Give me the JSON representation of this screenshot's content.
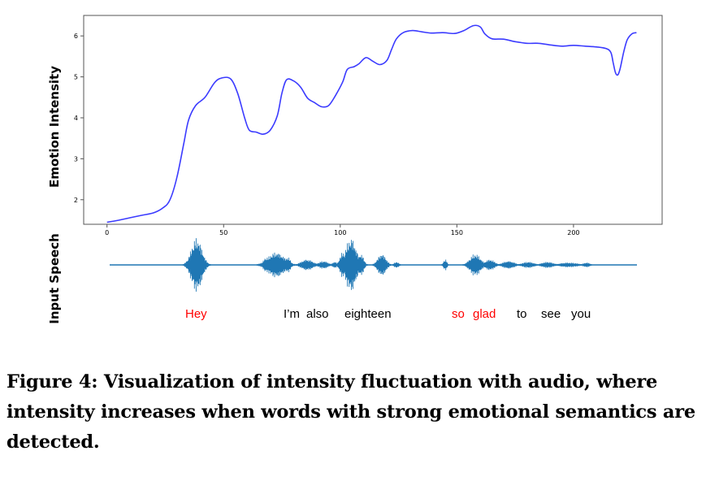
{
  "chart_data": {
    "type": "line",
    "ylabel": "Emotion Intensity",
    "xlim": [
      -10,
      238
    ],
    "ylim": [
      1.4,
      6.5
    ],
    "x_ticks": [
      0,
      50,
      100,
      150,
      200
    ],
    "y_ticks": [
      2,
      3,
      4,
      5,
      6
    ],
    "series": [
      {
        "color": "#3b3bff",
        "points": [
          [
            0,
            1.45
          ],
          [
            5,
            1.5
          ],
          [
            10,
            1.56
          ],
          [
            15,
            1.62
          ],
          [
            20,
            1.68
          ],
          [
            24,
            1.8
          ],
          [
            27,
            2.0
          ],
          [
            30,
            2.55
          ],
          [
            33,
            3.4
          ],
          [
            35,
            3.95
          ],
          [
            38,
            4.3
          ],
          [
            42,
            4.5
          ],
          [
            46,
            4.85
          ],
          [
            49,
            4.97
          ],
          [
            53,
            4.95
          ],
          [
            56,
            4.6
          ],
          [
            59,
            4.0
          ],
          [
            61,
            3.7
          ],
          [
            64,
            3.65
          ],
          [
            67,
            3.6
          ],
          [
            70,
            3.7
          ],
          [
            73,
            4.05
          ],
          [
            75,
            4.6
          ],
          [
            77,
            4.93
          ],
          [
            80,
            4.9
          ],
          [
            83,
            4.75
          ],
          [
            86,
            4.48
          ],
          [
            89,
            4.37
          ],
          [
            92,
            4.27
          ],
          [
            95,
            4.3
          ],
          [
            98,
            4.55
          ],
          [
            101,
            4.87
          ],
          [
            103,
            5.18
          ],
          [
            106,
            5.25
          ],
          [
            108,
            5.32
          ],
          [
            111,
            5.47
          ],
          [
            114,
            5.38
          ],
          [
            117,
            5.3
          ],
          [
            120,
            5.4
          ],
          [
            122,
            5.67
          ],
          [
            124,
            5.92
          ],
          [
            127,
            6.08
          ],
          [
            131,
            6.13
          ],
          [
            135,
            6.1
          ],
          [
            139,
            6.07
          ],
          [
            144,
            6.08
          ],
          [
            149,
            6.06
          ],
          [
            153,
            6.13
          ],
          [
            157,
            6.25
          ],
          [
            160,
            6.22
          ],
          [
            162,
            6.05
          ],
          [
            165,
            5.93
          ],
          [
            170,
            5.92
          ],
          [
            175,
            5.86
          ],
          [
            180,
            5.82
          ],
          [
            185,
            5.82
          ],
          [
            190,
            5.78
          ],
          [
            195,
            5.75
          ],
          [
            200,
            5.77
          ],
          [
            205,
            5.75
          ],
          [
            210,
            5.73
          ],
          [
            214,
            5.69
          ],
          [
            216,
            5.6
          ],
          [
            217,
            5.35
          ],
          [
            218,
            5.1
          ],
          [
            219,
            5.05
          ],
          [
            220,
            5.2
          ],
          [
            221.5,
            5.6
          ],
          [
            223,
            5.9
          ],
          [
            225,
            6.05
          ],
          [
            227,
            6.08
          ]
        ]
      }
    ]
  },
  "speech": {
    "ylabel": "Input Speech",
    "words": [
      {
        "text": "Hey",
        "color": "#ff0000"
      },
      {
        "text": "I’m",
        "color": "#000000"
      },
      {
        "text": "also",
        "color": "#000000"
      },
      {
        "text": "eighteen",
        "color": "#000000"
      },
      {
        "text": "so",
        "color": "#ff0000"
      },
      {
        "text": "glad",
        "color": "#ff0000"
      },
      {
        "text": "to",
        "color": "#000000"
      },
      {
        "text": "see",
        "color": "#000000"
      },
      {
        "text": "you",
        "color": "#000000"
      }
    ]
  },
  "caption": "Figure 4: Visualization of intensity fluctuation with audio, where intensity increases when words with strong emotional semantics are detected."
}
